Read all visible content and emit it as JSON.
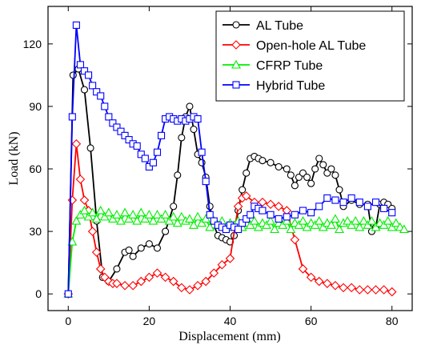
{
  "chart_data": {
    "type": "line",
    "xlabel": "Displacement (mm)",
    "ylabel": "Load (kN)",
    "xlim": [
      -5,
      85
    ],
    "ylim": [
      -8,
      138
    ],
    "xticks": [
      0,
      20,
      40,
      60,
      80
    ],
    "yticks": [
      0,
      30,
      60,
      90,
      120
    ],
    "grid": false,
    "legend_position": "top-right",
    "series": [
      {
        "name": "AL Tube",
        "color": "#000000",
        "marker": "circle",
        "x": [
          0,
          1.2,
          2.5,
          4,
          5.5,
          7,
          8.5,
          10,
          12,
          14,
          15,
          16,
          18,
          20,
          22,
          24,
          26,
          27,
          28,
          29,
          30,
          31,
          32,
          33,
          34,
          35,
          36,
          37,
          38,
          39,
          40,
          41,
          42,
          43,
          44,
          45,
          46,
          47,
          48,
          50,
          52,
          54,
          55,
          56,
          57,
          58,
          59,
          60,
          61,
          62,
          63,
          64,
          65,
          66,
          67,
          68,
          70,
          72,
          74,
          75,
          76,
          77,
          78,
          79,
          80
        ],
        "y": [
          0,
          105,
          108,
          98,
          70,
          35,
          8,
          6,
          12,
          20,
          21,
          18,
          22,
          24,
          22,
          30,
          42,
          57,
          75,
          85,
          90,
          79,
          67,
          63,
          56,
          42,
          33,
          28,
          27,
          26,
          25,
          28,
          40,
          50,
          58,
          65,
          66,
          65,
          64,
          63,
          61,
          60,
          57,
          52,
          56,
          58,
          56,
          53,
          60,
          65,
          62,
          58,
          60,
          57,
          50,
          42,
          45,
          43,
          43,
          30,
          32,
          43,
          44,
          43,
          41
        ]
      },
      {
        "name": "Open-hole AL Tube",
        "color": "#ff0000",
        "marker": "diamond",
        "x": [
          0,
          1,
          2,
          3,
          4,
          5,
          6,
          7,
          8,
          9,
          10,
          11,
          12,
          14,
          16,
          18,
          20,
          22,
          24,
          26,
          28,
          30,
          32,
          34,
          36,
          38,
          40,
          42,
          43,
          44,
          46,
          48,
          50,
          52,
          54,
          56,
          58,
          60,
          62,
          64,
          66,
          68,
          70,
          72,
          74,
          76,
          78,
          80
        ],
        "y": [
          0,
          45,
          72,
          55,
          45,
          40,
          30,
          20,
          12,
          8,
          6,
          5,
          5,
          4,
          4,
          6,
          8,
          10,
          8,
          6,
          3,
          2,
          4,
          6,
          10,
          14,
          17,
          42,
          46,
          47,
          44,
          44,
          43,
          42,
          40,
          26,
          12,
          8,
          6,
          5,
          4,
          3,
          3,
          2,
          2,
          2,
          2,
          1
        ]
      },
      {
        "name": "CFRP Tube",
        "color": "#00ee00",
        "marker": "triangle",
        "x": [
          0,
          1,
          2,
          3,
          4,
          5,
          6,
          7,
          8,
          9,
          10,
          11,
          12,
          13,
          14,
          15,
          16,
          17,
          18,
          19,
          20,
          21,
          22,
          23,
          24,
          25,
          26,
          27,
          28,
          29,
          30,
          31,
          32,
          33,
          34,
          35,
          36,
          37,
          38,
          39,
          40,
          41,
          42,
          43,
          44,
          45,
          46,
          47,
          48,
          49,
          50,
          51,
          52,
          53,
          54,
          55,
          56,
          57,
          58,
          59,
          60,
          61,
          62,
          63,
          64,
          65,
          66,
          67,
          68,
          69,
          70,
          71,
          72,
          73,
          74,
          75,
          76,
          77,
          78,
          79,
          80,
          81,
          82,
          83
        ],
        "y": [
          0,
          25,
          35,
          38,
          40,
          37,
          39,
          36,
          40,
          37,
          39,
          36,
          38,
          35,
          39,
          36,
          38,
          35,
          39,
          36,
          38,
          35,
          38,
          36,
          38,
          35,
          37,
          34,
          37,
          35,
          36,
          33,
          37,
          34,
          36,
          32,
          35,
          33,
          35,
          32,
          34,
          33,
          35,
          32,
          34,
          33,
          35,
          32,
          34,
          33,
          35,
          31,
          34,
          33,
          35,
          31,
          34,
          33,
          35,
          32,
          34,
          33,
          35,
          32,
          34,
          33,
          36,
          31,
          34,
          35,
          33,
          35,
          32,
          35,
          33,
          35,
          32,
          34,
          33,
          35,
          32,
          34,
          32,
          31
        ]
      },
      {
        "name": "Hybrid Tube",
        "color": "#0000ff",
        "marker": "square",
        "x": [
          0,
          1,
          2,
          3,
          4,
          5,
          6,
          7,
          8,
          9,
          10,
          11,
          12,
          13,
          14,
          15,
          16,
          17,
          18,
          19,
          20,
          21,
          22,
          23,
          24,
          25,
          26,
          27,
          28,
          29,
          30,
          31,
          32,
          33,
          34,
          35,
          36,
          37,
          38,
          39,
          40,
          41,
          42,
          43,
          44,
          45,
          46,
          47,
          48,
          50,
          52,
          54,
          56,
          58,
          60,
          62,
          64,
          66,
          68,
          70,
          72,
          74,
          76,
          78,
          80
        ],
        "y": [
          0,
          85,
          129,
          110,
          107,
          105,
          100,
          97,
          95,
          90,
          85,
          82,
          80,
          78,
          76,
          74,
          72,
          71,
          67,
          65,
          61,
          63,
          68,
          76,
          84,
          85,
          84,
          83,
          84,
          83,
          84,
          85,
          84,
          68,
          54,
          38,
          35,
          33,
          32,
          31,
          33,
          32,
          31,
          34,
          36,
          38,
          42,
          41,
          40,
          38,
          36,
          37,
          38,
          40,
          39,
          42,
          46,
          45,
          44,
          46,
          44,
          42,
          44,
          41,
          39
        ]
      }
    ]
  }
}
